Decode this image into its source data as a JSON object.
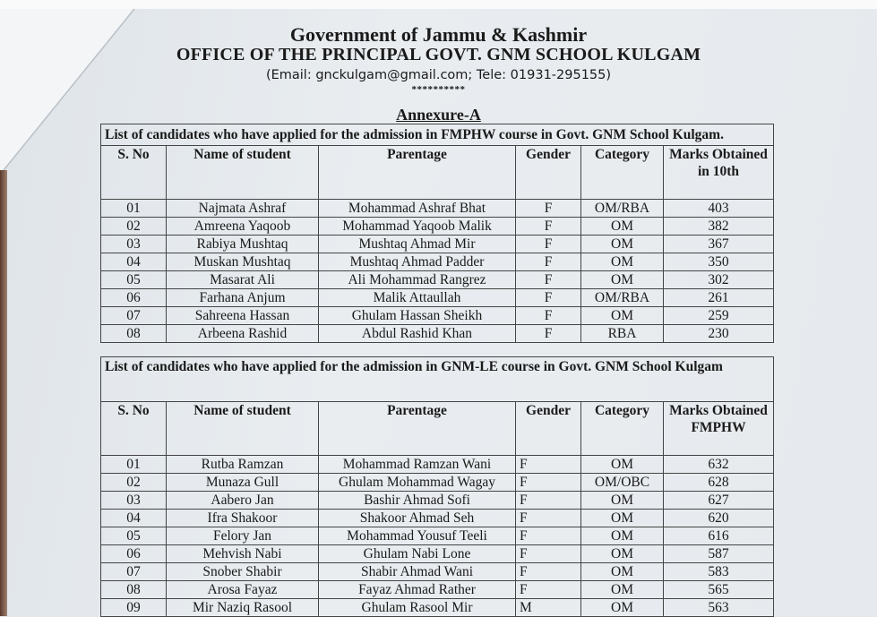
{
  "header": {
    "line1": "Government of Jammu & Kashmir",
    "line2": "OFFICE OF THE PRINCIPAL GOVT. GNM SCHOOL KULGAM",
    "contact": "(Email: gnckulgam@gmail.com; Tele: 01931-295155)",
    "stars": "**********",
    "annexure": "Annexure-A"
  },
  "table1": {
    "caption": "List of candidates who have applied for the admission in FMPHW course in Govt. GNM School Kulgam.",
    "columns": [
      "S. No",
      "Name of student",
      "Parentage",
      "Gender",
      "Category",
      "Marks Obtained in 10th"
    ],
    "rows": [
      [
        "01",
        "Najmata Ashraf",
        "Mohammad Ashraf Bhat",
        "F",
        "OM/RBA",
        "403"
      ],
      [
        "02",
        "Amreena Yaqoob",
        "Mohammad Yaqoob Malik",
        "F",
        "OM",
        "382"
      ],
      [
        "03",
        "Rabiya Mushtaq",
        "Mushtaq Ahmad Mir",
        "F",
        "OM",
        "367"
      ],
      [
        "04",
        "Muskan Mushtaq",
        "Mushtaq Ahmad Padder",
        "F",
        "OM",
        "350"
      ],
      [
        "05",
        "Masarat Ali",
        "Ali Mohammad Rangrez",
        "F",
        "OM",
        "302"
      ],
      [
        "06",
        "Farhana Anjum",
        "Malik Attaullah",
        "F",
        "OM/RBA",
        "261"
      ],
      [
        "07",
        "Sahreena Hassan",
        "Ghulam Hassan Sheikh",
        "F",
        "OM",
        "259"
      ],
      [
        "08",
        "Arbeena Rashid",
        "Abdul Rashid Khan",
        "F",
        "RBA",
        "230"
      ]
    ]
  },
  "table2": {
    "caption": "List of candidates who have applied for the admission in GNM-LE course in Govt. GNM School Kulgam",
    "columns": [
      "S. No",
      "Name of student",
      "Parentage",
      "Gender",
      "Category",
      "Marks Obtained FMPHW"
    ],
    "rows": [
      [
        "01",
        "Rutba Ramzan",
        "Mohammad Ramzan Wani",
        "F",
        "OM",
        "632"
      ],
      [
        "02",
        "Munaza Gull",
        "Ghulam Mohammad Wagay",
        "F",
        "OM/OBC",
        "628"
      ],
      [
        "03",
        "Aabero Jan",
        "Bashir Ahmad Sofi",
        "F",
        "OM",
        "627"
      ],
      [
        "04",
        "Ifra Shakoor",
        "Shakoor Ahmad Seh",
        "F",
        "OM",
        "620"
      ],
      [
        "05",
        "Felory Jan",
        "Mohammad Yousuf Teeli",
        "F",
        "OM",
        "616"
      ],
      [
        "06",
        "Mehvish Nabi",
        "Ghulam Nabi Lone",
        "F",
        "OM",
        "587"
      ],
      [
        "07",
        "Snober Shabir",
        "Shabir Ahmad Wani",
        "F",
        "OM",
        "583"
      ],
      [
        "08",
        "Arosa Fayaz",
        "Fayaz Ahmad Rather",
        "F",
        "OM",
        "565"
      ],
      [
        "09",
        "Mir Naziq Rasool",
        "Ghulam Rasool Mir",
        "M",
        "OM",
        "563"
      ]
    ]
  }
}
